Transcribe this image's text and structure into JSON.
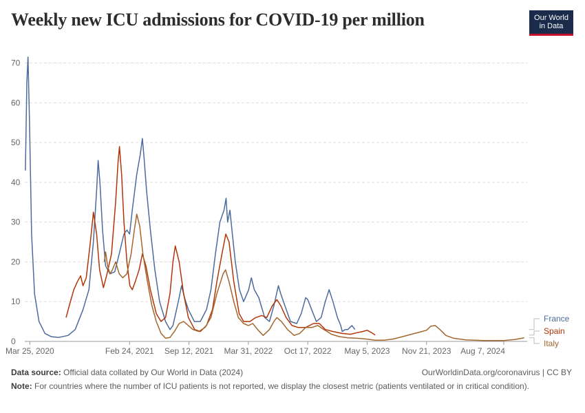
{
  "title": "Weekly new ICU admissions for COVID-19 per million",
  "logo": {
    "line1": "Our World",
    "line2": "in Data"
  },
  "footer": {
    "source_label": "Data source:",
    "source_text": "Official data collated by Our World in Data (2024)",
    "url_text": "OurWorldinData.org/coronavirus | CC BY",
    "note_label": "Note:",
    "note_text": "For countries where the number of ICU patients is not reported, we display the closest metric (patients ventilated or in critical condition)."
  },
  "chart_data": {
    "type": "line",
    "title": "Weekly new ICU admissions for COVID-19 per million",
    "x_type": "date",
    "xlim": [
      "2020-03-08",
      "2024-10-25"
    ],
    "ylim": [
      0,
      72
    ],
    "y_ticks": [
      0,
      10,
      20,
      30,
      40,
      50,
      60,
      70
    ],
    "x_ticks": [
      {
        "date": "2020-03-25",
        "label": "Mar 25, 2020"
      },
      {
        "date": "2021-02-24",
        "label": "Feb 24, 2021"
      },
      {
        "date": "2021-09-12",
        "label": "Sep 12, 2021"
      },
      {
        "date": "2022-03-31",
        "label": "Mar 31, 2022"
      },
      {
        "date": "2022-10-17",
        "label": "Oct 17, 2022"
      },
      {
        "date": "2023-05-05",
        "label": "May 5, 2023"
      },
      {
        "date": "2023-11-21",
        "label": "Nov 21, 2023"
      },
      {
        "date": "2024-08-07",
        "label": "Aug 7, 2024"
      }
    ],
    "grid": true,
    "legend_position": "right",
    "series": [
      {
        "name": "France",
        "color": "#4c6a9c",
        "points": [
          [
            "2020-03-10",
            43
          ],
          [
            "2020-03-15",
            65
          ],
          [
            "2020-03-19",
            71.5
          ],
          [
            "2020-03-24",
            55
          ],
          [
            "2020-03-31",
            27
          ],
          [
            "2020-04-10",
            12
          ],
          [
            "2020-04-25",
            5
          ],
          [
            "2020-05-15",
            2
          ],
          [
            "2020-06-05",
            1.2
          ],
          [
            "2020-07-01",
            1
          ],
          [
            "2020-08-01",
            1.5
          ],
          [
            "2020-08-25",
            3
          ],
          [
            "2020-09-20",
            8
          ],
          [
            "2020-10-10",
            13
          ],
          [
            "2020-10-25",
            25
          ],
          [
            "2020-11-05",
            38
          ],
          [
            "2020-11-10",
            45.5
          ],
          [
            "2020-11-16",
            40
          ],
          [
            "2020-11-25",
            28
          ],
          [
            "2020-12-05",
            19
          ],
          [
            "2020-12-20",
            17
          ],
          [
            "2021-01-05",
            17.5
          ],
          [
            "2021-01-20",
            22
          ],
          [
            "2021-02-05",
            27
          ],
          [
            "2021-02-15",
            28
          ],
          [
            "2021-02-24",
            27
          ],
          [
            "2021-03-05",
            33
          ],
          [
            "2021-03-20",
            42
          ],
          [
            "2021-04-01",
            47
          ],
          [
            "2021-04-08",
            51
          ],
          [
            "2021-04-14",
            46
          ],
          [
            "2021-04-22",
            38
          ],
          [
            "2021-05-05",
            28
          ],
          [
            "2021-05-20",
            18
          ],
          [
            "2021-06-05",
            10
          ],
          [
            "2021-06-25",
            5
          ],
          [
            "2021-07-10",
            3
          ],
          [
            "2021-07-20",
            4
          ],
          [
            "2021-08-01",
            8
          ],
          [
            "2021-08-10",
            11
          ],
          [
            "2021-08-18",
            14
          ],
          [
            "2021-08-28",
            11
          ],
          [
            "2021-09-10",
            8
          ],
          [
            "2021-09-30",
            5
          ],
          [
            "2021-10-20",
            5
          ],
          [
            "2021-11-10",
            8
          ],
          [
            "2021-11-25",
            13
          ],
          [
            "2021-12-10",
            22
          ],
          [
            "2021-12-25",
            30
          ],
          [
            "2022-01-08",
            33
          ],
          [
            "2022-01-15",
            36
          ],
          [
            "2022-01-20",
            30
          ],
          [
            "2022-01-28",
            33
          ],
          [
            "2022-02-05",
            27
          ],
          [
            "2022-02-15",
            20
          ],
          [
            "2022-03-01",
            13
          ],
          [
            "2022-03-15",
            10
          ],
          [
            "2022-04-01",
            13
          ],
          [
            "2022-04-10",
            16
          ],
          [
            "2022-04-20",
            13
          ],
          [
            "2022-05-05",
            11
          ],
          [
            "2022-05-25",
            6
          ],
          [
            "2022-06-10",
            5
          ],
          [
            "2022-06-25",
            9
          ],
          [
            "2022-07-10",
            14
          ],
          [
            "2022-07-18",
            12
          ],
          [
            "2022-08-01",
            9
          ],
          [
            "2022-08-20",
            5
          ],
          [
            "2022-09-10",
            4.5
          ],
          [
            "2022-09-25",
            7
          ],
          [
            "2022-10-10",
            11
          ],
          [
            "2022-10-17",
            10.5
          ],
          [
            "2022-10-30",
            8
          ],
          [
            "2022-11-15",
            5
          ],
          [
            "2022-12-01",
            6
          ],
          [
            "2022-12-15",
            10
          ],
          [
            "2022-12-28",
            13
          ],
          [
            "2023-01-10",
            10
          ],
          [
            "2023-01-25",
            6
          ],
          [
            "2023-02-05",
            4
          ],
          [
            "2023-02-10",
            2.5
          ],
          [
            "2023-02-20",
            3
          ],
          [
            "2023-03-01",
            3
          ],
          [
            "2023-03-15",
            4
          ],
          [
            "2023-03-25",
            3
          ]
        ]
      },
      {
        "name": "Spain",
        "color": "#b13507",
        "points": [
          [
            "2020-07-25",
            6
          ],
          [
            "2020-08-05",
            9
          ],
          [
            "2020-08-20",
            13
          ],
          [
            "2020-09-01",
            15
          ],
          [
            "2020-09-12",
            16.5
          ],
          [
            "2020-09-20",
            14
          ],
          [
            "2020-10-01",
            16
          ],
          [
            "2020-10-15",
            25
          ],
          [
            "2020-10-25",
            32.5
          ],
          [
            "2020-11-05",
            27
          ],
          [
            "2020-11-15",
            18
          ],
          [
            "2020-11-28",
            13.5
          ],
          [
            "2020-12-10",
            17
          ],
          [
            "2020-12-25",
            22
          ],
          [
            "2021-01-08",
            35
          ],
          [
            "2021-01-16",
            45
          ],
          [
            "2021-01-21",
            49
          ],
          [
            "2021-01-28",
            42
          ],
          [
            "2021-02-05",
            30
          ],
          [
            "2021-02-15",
            20
          ],
          [
            "2021-02-25",
            14
          ],
          [
            "2021-03-05",
            13
          ],
          [
            "2021-03-15",
            15
          ],
          [
            "2021-03-28",
            18
          ],
          [
            "2021-04-08",
            22
          ],
          [
            "2021-04-20",
            19
          ],
          [
            "2021-05-05",
            13
          ],
          [
            "2021-05-25",
            7
          ],
          [
            "2021-06-10",
            5
          ],
          [
            "2021-06-25",
            6
          ],
          [
            "2021-07-10",
            12
          ],
          [
            "2021-07-20",
            20
          ],
          [
            "2021-07-28",
            24
          ],
          [
            "2021-08-10",
            20
          ],
          [
            "2021-08-25",
            12
          ],
          [
            "2021-09-10",
            6
          ],
          [
            "2021-10-01",
            3
          ],
          [
            "2021-10-20",
            2.5
          ],
          [
            "2021-11-10",
            4
          ],
          [
            "2021-11-30",
            8
          ],
          [
            "2021-12-15",
            15
          ],
          [
            "2022-01-01",
            22
          ],
          [
            "2022-01-14",
            27
          ],
          [
            "2022-01-25",
            25
          ],
          [
            "2022-02-10",
            15
          ],
          [
            "2022-02-28",
            7
          ],
          [
            "2022-03-15",
            5
          ],
          [
            "2022-04-05",
            5
          ],
          [
            "2022-04-25",
            6
          ],
          [
            "2022-05-15",
            6.5
          ],
          [
            "2022-06-01",
            6
          ],
          [
            "2022-06-20",
            9
          ],
          [
            "2022-07-05",
            10.5
          ],
          [
            "2022-07-18",
            9
          ],
          [
            "2022-08-05",
            6
          ],
          [
            "2022-08-25",
            4
          ],
          [
            "2022-09-15",
            3.5
          ],
          [
            "2022-10-10",
            3.5
          ],
          [
            "2022-11-05",
            4.5
          ],
          [
            "2022-11-25",
            4.5
          ],
          [
            "2022-12-15",
            3
          ],
          [
            "2023-01-10",
            2.5
          ],
          [
            "2023-02-10",
            2
          ],
          [
            "2023-03-10",
            1.8
          ],
          [
            "2023-04-01",
            2.2
          ],
          [
            "2023-04-20",
            2.5
          ],
          [
            "2023-05-05",
            2.8
          ],
          [
            "2023-05-20",
            2.2
          ],
          [
            "2023-06-01",
            1.6
          ]
        ]
      },
      {
        "name": "Italy",
        "color": "#a2662c",
        "points": [
          [
            "2020-12-01",
            20
          ],
          [
            "2020-12-05",
            22.5
          ],
          [
            "2020-12-12",
            19
          ],
          [
            "2020-12-20",
            17
          ],
          [
            "2020-12-28",
            18
          ],
          [
            "2021-01-08",
            20
          ],
          [
            "2021-01-20",
            17
          ],
          [
            "2021-02-01",
            16
          ],
          [
            "2021-02-15",
            17
          ],
          [
            "2021-03-01",
            22
          ],
          [
            "2021-03-12",
            28
          ],
          [
            "2021-03-20",
            32
          ],
          [
            "2021-03-30",
            29
          ],
          [
            "2021-04-10",
            22
          ],
          [
            "2021-04-25",
            15
          ],
          [
            "2021-05-10",
            9
          ],
          [
            "2021-05-25",
            5
          ],
          [
            "2021-06-10",
            2
          ],
          [
            "2021-06-25",
            0.8
          ],
          [
            "2021-07-10",
            1
          ],
          [
            "2021-07-25",
            2.5
          ],
          [
            "2021-08-10",
            4.5
          ],
          [
            "2021-08-25",
            5
          ],
          [
            "2021-09-10",
            4
          ],
          [
            "2021-09-25",
            3
          ],
          [
            "2021-10-15",
            2.5
          ],
          [
            "2021-11-05",
            3.5
          ],
          [
            "2021-11-25",
            6
          ],
          [
            "2021-12-15",
            12
          ],
          [
            "2022-01-05",
            17
          ],
          [
            "2022-01-13",
            18
          ],
          [
            "2022-01-25",
            15
          ],
          [
            "2022-02-10",
            10
          ],
          [
            "2022-02-25",
            6
          ],
          [
            "2022-03-15",
            4.5
          ],
          [
            "2022-03-31",
            4
          ],
          [
            "2022-04-15",
            4.5
          ],
          [
            "2022-05-01",
            3
          ],
          [
            "2022-05-20",
            1.5
          ],
          [
            "2022-06-10",
            3
          ],
          [
            "2022-06-25",
            5
          ],
          [
            "2022-07-05",
            6
          ],
          [
            "2022-07-20",
            5
          ],
          [
            "2022-08-10",
            3
          ],
          [
            "2022-09-01",
            1.5
          ],
          [
            "2022-09-20",
            2
          ],
          [
            "2022-10-10",
            3.5
          ],
          [
            "2022-10-30",
            3.5
          ],
          [
            "2022-11-20",
            4
          ],
          [
            "2022-12-10",
            3
          ],
          [
            "2023-01-05",
            1.8
          ],
          [
            "2023-02-01",
            1.2
          ],
          [
            "2023-03-01",
            0.9
          ],
          [
            "2023-04-01",
            0.8
          ],
          [
            "2023-05-01",
            0.6
          ],
          [
            "2023-06-01",
            0.3
          ],
          [
            "2023-07-01",
            0.3
          ],
          [
            "2023-08-01",
            0.6
          ],
          [
            "2023-09-01",
            1.2
          ],
          [
            "2023-10-01",
            1.8
          ],
          [
            "2023-11-01",
            2.4
          ],
          [
            "2023-11-21",
            2.8
          ],
          [
            "2023-12-05",
            3.8
          ],
          [
            "2023-12-20",
            4
          ],
          [
            "2024-01-05",
            3
          ],
          [
            "2024-01-25",
            1.5
          ],
          [
            "2024-02-20",
            0.8
          ],
          [
            "2024-04-01",
            0.4
          ],
          [
            "2024-06-01",
            0.2
          ],
          [
            "2024-08-07",
            0.2
          ],
          [
            "2024-09-15",
            0.5
          ],
          [
            "2024-10-15",
            0.9
          ]
        ]
      }
    ]
  }
}
